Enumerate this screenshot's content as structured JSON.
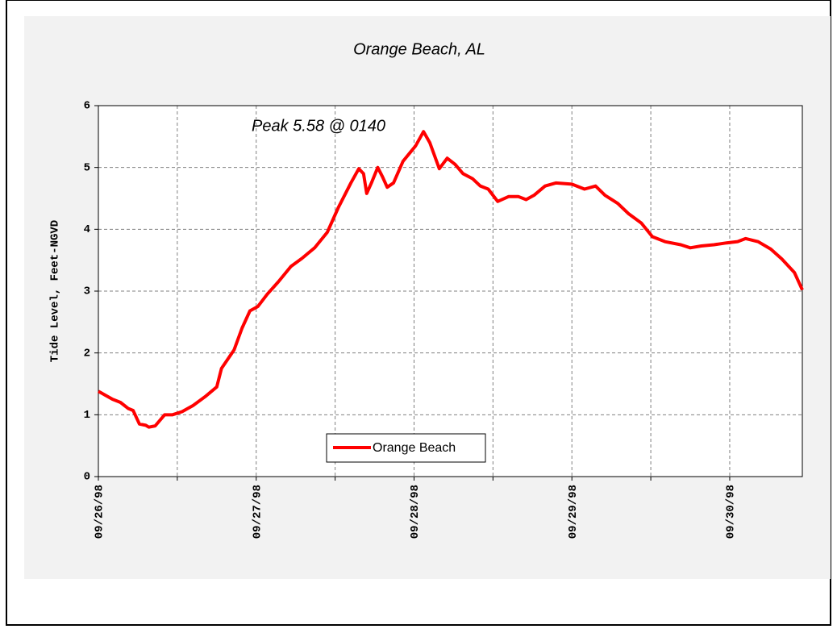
{
  "chart_data": {
    "type": "line",
    "title": "Orange Beach, AL",
    "ylabel": "Tide Level, Feet-NGVD",
    "annotation": "Peak 5.58 @ 0140",
    "x": [
      0,
      0.09,
      0.14,
      0.19,
      0.22,
      0.26,
      0.3,
      0.32,
      0.36,
      0.42,
      0.47,
      0.53,
      0.6,
      0.68,
      0.75,
      0.78,
      0.86,
      0.91,
      0.96,
      1.01,
      1.07,
      1.14,
      1.22,
      1.29,
      1.37,
      1.45,
      1.52,
      1.6,
      1.65,
      1.68,
      1.7,
      1.73,
      1.77,
      1.8,
      1.83,
      1.87,
      1.93,
      2.01,
      2.06,
      2.1,
      2.16,
      2.21,
      2.26,
      2.31,
      2.37,
      2.42,
      2.47,
      2.53,
      2.6,
      2.66,
      2.71,
      2.76,
      2.83,
      2.9,
      3.0,
      3.08,
      3.15,
      3.21,
      3.29,
      3.36,
      3.44,
      3.51,
      3.59,
      3.69,
      3.75,
      3.82,
      3.9,
      3.98,
      4.05,
      4.1,
      4.18,
      4.26,
      4.33,
      4.41,
      4.46
    ],
    "series": [
      {
        "name": "Orange Beach",
        "color": "#ff0000",
        "values": [
          1.38,
          1.25,
          1.2,
          1.1,
          1.07,
          0.85,
          0.83,
          0.8,
          0.82,
          1.0,
          1.0,
          1.05,
          1.15,
          1.3,
          1.45,
          1.75,
          2.05,
          2.4,
          2.68,
          2.75,
          2.95,
          3.15,
          3.4,
          3.53,
          3.7,
          3.95,
          4.35,
          4.75,
          4.98,
          4.9,
          4.58,
          4.75,
          5.0,
          4.85,
          4.68,
          4.75,
          5.1,
          5.35,
          5.58,
          5.4,
          4.98,
          5.15,
          5.05,
          4.9,
          4.82,
          4.7,
          4.65,
          4.45,
          4.53,
          4.53,
          4.48,
          4.55,
          4.7,
          4.75,
          4.73,
          4.65,
          4.7,
          4.55,
          4.42,
          4.25,
          4.1,
          3.88,
          3.8,
          3.75,
          3.7,
          3.73,
          3.75,
          3.78,
          3.8,
          3.85,
          3.8,
          3.68,
          3.52,
          3.3,
          3.02
        ]
      }
    ],
    "xlim": [
      0,
      4.46
    ],
    "xticks": [
      {
        "value": 0,
        "label": "09/26/98"
      },
      {
        "value": 1,
        "label": "09/27/98"
      },
      {
        "value": 2,
        "label": "09/28/98"
      },
      {
        "value": 3,
        "label": "09/29/98"
      },
      {
        "value": 4,
        "label": "09/30/98"
      }
    ],
    "xminor": [
      0.5,
      1.5,
      2.5,
      3.5
    ],
    "ylim": [
      0,
      6
    ],
    "yticks": [
      0,
      1,
      2,
      3,
      4,
      5,
      6
    ],
    "grid": true,
    "legend": "bottom"
  }
}
